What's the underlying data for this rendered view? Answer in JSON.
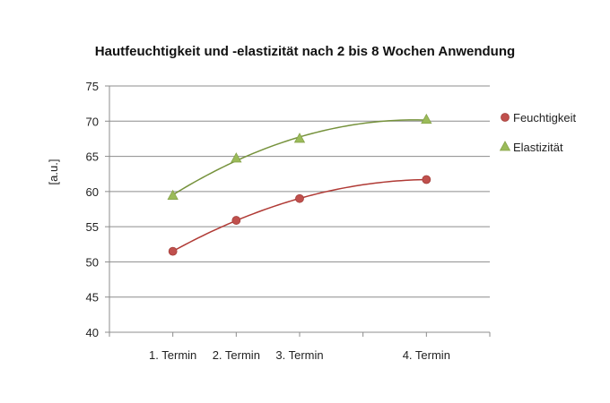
{
  "chart_data": {
    "type": "scatter",
    "title": "Hautfeuchtigkeit und -elastizität nach 2 bis 8 Wochen Anwendung",
    "ylabel": "[a.u.]",
    "xlabel": "",
    "ylim": [
      40,
      75
    ],
    "yticks": [
      40,
      45,
      50,
      55,
      60,
      65,
      70,
      75
    ],
    "x_points": [
      {
        "label": "1. Termin",
        "x": 1
      },
      {
        "label": "2. Termin",
        "x": 2
      },
      {
        "label": "3. Termin",
        "x": 3
      },
      {
        "label": "4. Termin",
        "x": 5
      }
    ],
    "xlim": [
      0,
      6
    ],
    "grid": true,
    "legend_position": "right",
    "trendlines": "polynomial",
    "series": [
      {
        "name": "Feuchtigkeit",
        "marker": "circle",
        "color": "#c0504d",
        "values": [
          51.5,
          55.9,
          59.0,
          61.7
        ]
      },
      {
        "name": "Elastizität",
        "marker": "triangle",
        "color": "#9bbb59",
        "values": [
          59.4,
          64.7,
          67.5,
          70.2
        ]
      }
    ]
  }
}
